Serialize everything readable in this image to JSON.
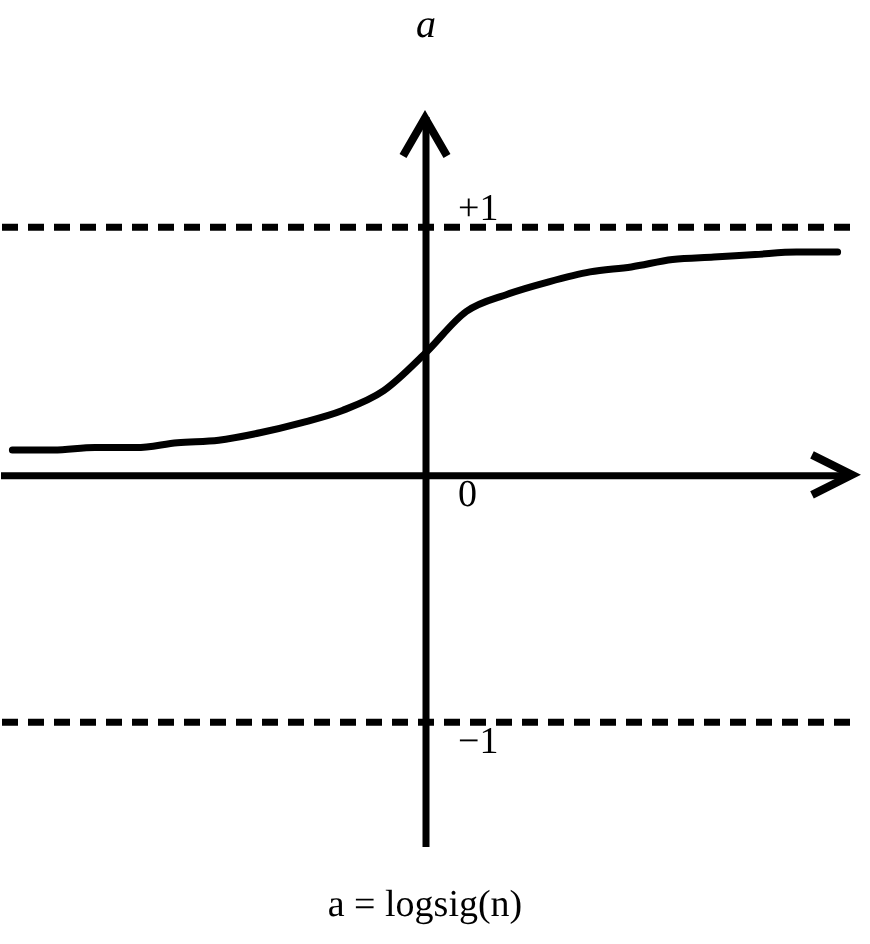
{
  "chart_data": {
    "type": "line",
    "title": "a = logsig(n)",
    "ylabel": "a",
    "categories": [
      null,
      null,
      null,
      null,
      null,
      null,
      null,
      null,
      null,
      null,
      null,
      null,
      null,
      null,
      null,
      null,
      null,
      null,
      null,
      null,
      null
    ],
    "series": [
      {
        "color": "#000000",
        "values": [
          0.1,
          0.1,
          0.11,
          0.11,
          0.13,
          0.14,
          0.17,
          0.21,
          0.26,
          0.34,
          0.49,
          0.66,
          0.73,
          0.78,
          0.82,
          0.84,
          0.87,
          0.88,
          0.89,
          0.9,
          0.9
        ]
      }
    ],
    "ylim": [
      -1.5,
      1.45
    ],
    "yticks": [
      {
        "value": 1,
        "label": "+1"
      },
      0,
      {
        "value": -1,
        "label": "−1"
      }
    ],
    "ref_lines": [
      {
        "axis": "y",
        "value": 1,
        "line_style": "dashed",
        "color": "#000000"
      },
      {
        "axis": "y",
        "value": -1,
        "line_style": "dashed",
        "color": "#000000"
      }
    ],
    "grid": false,
    "legend": false,
    "marker": "none",
    "line_style": "solid",
    "tick_labels": "y"
  }
}
